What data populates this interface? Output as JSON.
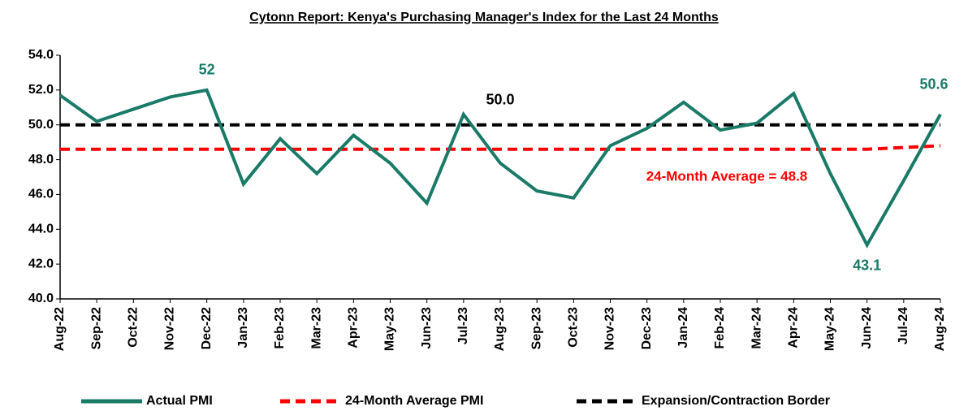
{
  "chart_data": {
    "type": "line",
    "title": "Cytonn Report: Kenya's Purchasing Manager's Index for the Last 24 Months",
    "categories": [
      "Aug-22",
      "Sep-22",
      "Oct-22",
      "Nov-22",
      "Dec-22",
      "Jan-23",
      "Feb-23",
      "Mar-23",
      "Apr-23",
      "May-23",
      "Jun-23",
      "Jul-23",
      "Aug-23",
      "Sep-23",
      "Oct-23",
      "Nov-23",
      "Dec-23",
      "Jan-24",
      "Feb-24",
      "Mar-24",
      "Apr-24",
      "May-24",
      "Jun-24",
      "Jul-24",
      "Aug-24"
    ],
    "series": [
      {
        "name": "Actual PMI",
        "color": "#1a7a68",
        "dash": false,
        "values": [
          51.7,
          50.2,
          50.9,
          51.6,
          52.0,
          46.6,
          49.2,
          47.2,
          49.4,
          47.8,
          45.5,
          50.6,
          47.8,
          46.2,
          45.8,
          48.8,
          49.8,
          51.3,
          49.7,
          50.1,
          51.8,
          47.2,
          43.1,
          46.8,
          50.6
        ],
        "value_labels": [
          null,
          null,
          null,
          null,
          "52",
          null,
          null,
          null,
          null,
          null,
          null,
          null,
          null,
          null,
          null,
          null,
          null,
          null,
          null,
          null,
          null,
          null,
          "43.1",
          null,
          "50.6"
        ]
      },
      {
        "name": "24-Month Average PMI",
        "color": "#ff0000",
        "dash": true,
        "values": [
          48.6,
          48.6,
          48.6,
          48.6,
          48.6,
          48.6,
          48.6,
          48.6,
          48.6,
          48.6,
          48.6,
          48.6,
          48.6,
          48.6,
          48.6,
          48.6,
          48.6,
          48.6,
          48.6,
          48.6,
          48.6,
          48.6,
          48.6,
          48.7,
          48.8
        ]
      },
      {
        "name": "Expansion/Contraction Border",
        "color": "#000000",
        "dash": true,
        "values": [
          50,
          50,
          50,
          50,
          50,
          50,
          50,
          50,
          50,
          50,
          50,
          50,
          50,
          50,
          50,
          50,
          50,
          50,
          50,
          50,
          50,
          50,
          50,
          50,
          50
        ],
        "value_labels": [
          null,
          null,
          null,
          null,
          null,
          null,
          null,
          null,
          null,
          null,
          null,
          null,
          "50.0",
          null,
          null,
          null,
          null,
          null,
          null,
          null,
          null,
          null,
          null,
          null,
          null
        ]
      }
    ],
    "annotations": [
      {
        "text": "24-Month Average = 48.8",
        "color": "#ff0000"
      }
    ],
    "ylim": [
      40,
      54
    ],
    "yticks": [
      {
        "value": 40,
        "label": "40.0"
      },
      {
        "value": 42,
        "label": "42.0"
      },
      {
        "value": 44,
        "label": "44.0"
      },
      {
        "value": 46,
        "label": "46.0"
      },
      {
        "value": 48,
        "label": "48.0"
      },
      {
        "value": 50,
        "label": "50.0"
      },
      {
        "value": 52,
        "label": "52.0"
      },
      {
        "value": 54,
        "label": "54.0"
      }
    ],
    "grid": false,
    "legend": "bottom"
  }
}
